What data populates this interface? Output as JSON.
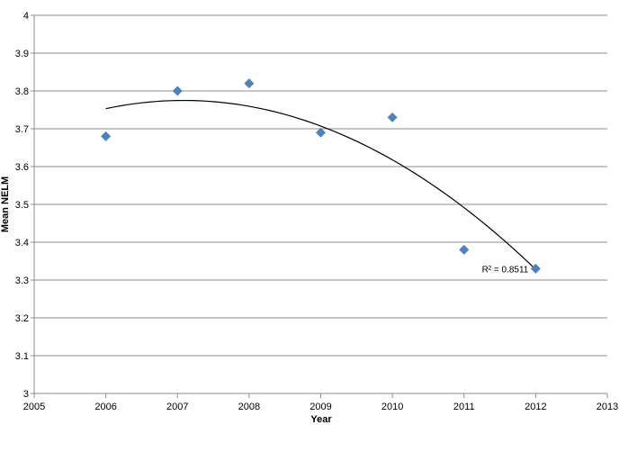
{
  "chart_data": {
    "type": "scatter",
    "title": "",
    "xlabel": "Year",
    "ylabel": "Mean NELM",
    "xlim": [
      2005,
      2013
    ],
    "ylim": [
      3,
      4
    ],
    "x_ticks": [
      "2005",
      "2006",
      "2007",
      "2008",
      "2009",
      "2010",
      "2011",
      "2012",
      "2013"
    ],
    "y_ticks": [
      "3",
      "3.1",
      "3.2",
      "3.3",
      "3.4",
      "3.5",
      "3.6",
      "3.7",
      "3.8",
      "3.9",
      "4"
    ],
    "grid": "horizontal",
    "legend": "none",
    "marker": "diamond",
    "series": [
      {
        "color": "#4F81BD",
        "points": [
          {
            "x": 2006,
            "y": 3.68
          },
          {
            "x": 2007,
            "y": 3.8
          },
          {
            "x": 2008,
            "y": 3.82
          },
          {
            "x": 2009,
            "y": 3.69
          },
          {
            "x": 2010,
            "y": 3.73
          },
          {
            "x": 2011,
            "y": 3.38
          },
          {
            "x": 2012,
            "y": 3.33
          }
        ]
      }
    ],
    "trendline": {
      "type": "polynomial",
      "order": 2,
      "color": "#000000",
      "x_range": [
        2006,
        2012
      ],
      "points": [
        {
          "x": 2006,
          "y": 3.752
        },
        {
          "x": 2007,
          "y": 3.775
        },
        {
          "x": 2008,
          "y": 3.762
        },
        {
          "x": 2009,
          "y": 3.708
        },
        {
          "x": 2010,
          "y": 3.615
        },
        {
          "x": 2011,
          "y": 3.49
        },
        {
          "x": 2012,
          "y": 3.33
        }
      ],
      "label": "R² = 0.8511"
    }
  }
}
